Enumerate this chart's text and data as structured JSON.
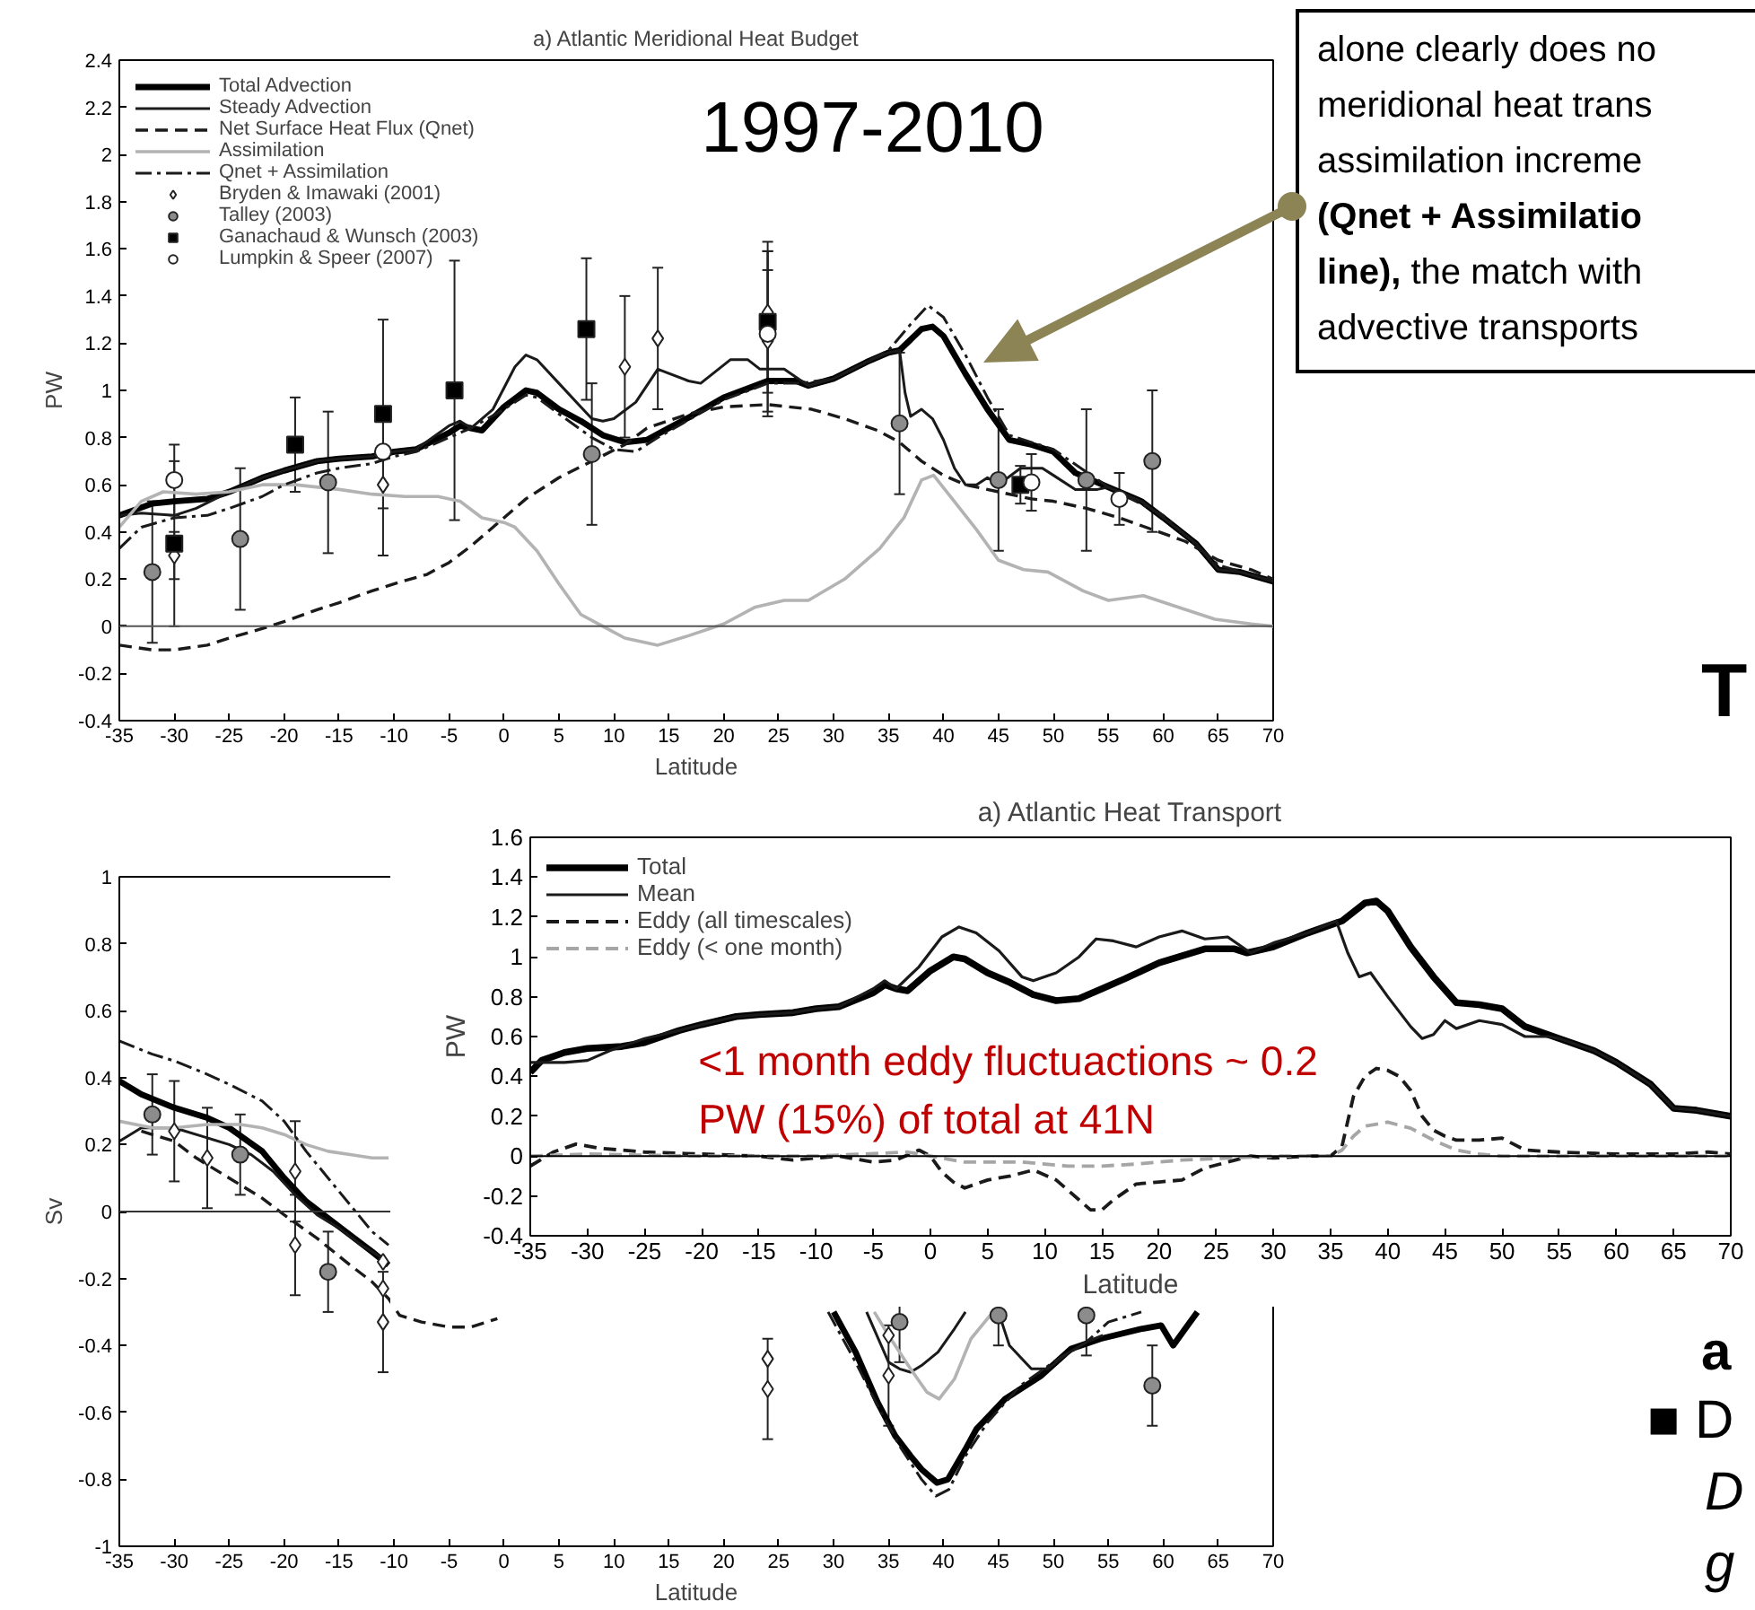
{
  "chart_data": [
    {
      "type": "line",
      "title": "a) Atlantic Meridional Heat Budget",
      "xlabel": "Latitude",
      "ylabel": "PW",
      "xlim": [
        -35,
        70
      ],
      "ylim": [
        -0.4,
        2.4
      ],
      "xticks": [
        -35,
        -30,
        -25,
        -20,
        -15,
        -10,
        -5,
        0,
        5,
        10,
        15,
        20,
        25,
        30,
        35,
        40,
        45,
        50,
        55,
        60,
        65,
        70
      ],
      "yticks": [
        -0.4,
        -0.2,
        0,
        0.2,
        0.4,
        0.6,
        0.8,
        1,
        1.2,
        1.4,
        1.6,
        1.8,
        2,
        2.2,
        2.4
      ],
      "legend": "top left",
      "ref_lines": [
        {
          "axis": "y",
          "value": 0,
          "color": "#555555"
        }
      ],
      "annotations": [
        "1997-2010",
        "alone clearly does no\nmeridional heat trans\nassimilation increme\n(Qnet + Assimilatio\nline), the match with\nadvective transports"
      ],
      "series": [
        {
          "name": "Total Advection",
          "color": "#000000",
          "line_style": "solid",
          "x": [
            -35,
            -32,
            -30,
            -27,
            -25,
            -22,
            -20,
            -17,
            -15,
            -12,
            -10,
            -8,
            -5,
            -4,
            -3,
            -2,
            0,
            2,
            3,
            5,
            7,
            9,
            11,
            13,
            15,
            17,
            20,
            24,
            26.6,
            27.7,
            30,
            33,
            35,
            36,
            38,
            39,
            40,
            42,
            44,
            46,
            48,
            50,
            52,
            55,
            58,
            60,
            63,
            65,
            67,
            70
          ],
          "values": [
            0.47,
            0.52,
            0.53,
            0.54,
            0.57,
            0.63,
            0.66,
            0.7,
            0.71,
            0.72,
            0.74,
            0.75,
            0.82,
            0.85,
            0.84,
            0.83,
            0.93,
            1.0,
            0.99,
            0.92,
            0.87,
            0.81,
            0.78,
            0.79,
            0.84,
            0.89,
            0.97,
            1.04,
            1.04,
            1.02,
            1.05,
            1.12,
            1.16,
            1.17,
            1.26,
            1.27,
            1.23,
            1.07,
            0.92,
            0.79,
            0.77,
            0.74,
            0.65,
            0.59,
            0.53,
            0.46,
            0.35,
            0.24,
            0.23,
            0.19
          ]
        },
        {
          "name": "Steady Advection",
          "color": "#1a1a1a",
          "line_style": "solid",
          "x": [
            -35,
            -33,
            -30,
            -28,
            -25,
            -22,
            -20,
            -17,
            -15,
            -12,
            -10,
            -8,
            -5,
            -4,
            -3,
            -1,
            1,
            2,
            3,
            5,
            7,
            8,
            9,
            10,
            12,
            14,
            16.8,
            17.9,
            20.6,
            22.2,
            23.3,
            25.5,
            27.7,
            30,
            33,
            35,
            36,
            36.5,
            37,
            38,
            39,
            40,
            41,
            42,
            43,
            44,
            45,
            47,
            49,
            50,
            52,
            54,
            55,
            58,
            60,
            63,
            65,
            67,
            70
          ],
          "values": [
            0.47,
            0.48,
            0.47,
            0.5,
            0.57,
            0.63,
            0.66,
            0.7,
            0.71,
            0.72,
            0.74,
            0.75,
            0.85,
            0.87,
            0.84,
            0.92,
            1.1,
            1.15,
            1.13,
            1.03,
            0.93,
            0.88,
            0.87,
            0.88,
            0.95,
            1.09,
            1.04,
            1.03,
            1.13,
            1.13,
            1.09,
            1.09,
            1.02,
            1.05,
            1.12,
            1.16,
            1.17,
            0.99,
            0.89,
            0.92,
            0.88,
            0.79,
            0.67,
            0.6,
            0.6,
            0.63,
            0.6,
            0.67,
            0.67,
            0.64,
            0.58,
            0.58,
            0.59,
            0.53,
            0.46,
            0.35,
            0.24,
            0.23,
            0.19
          ]
        },
        {
          "name": "Net Surface Heat Flux (Qnet)",
          "color": "#1a1a1a",
          "line_style": "dashed",
          "x": [
            -35,
            -32,
            -30,
            -27,
            -25,
            -22,
            -20,
            -17,
            -15,
            -12,
            -10,
            -7,
            -5,
            -3,
            -1,
            0,
            2,
            5,
            8,
            11,
            13,
            16.8,
            20,
            24,
            28,
            31,
            34,
            36,
            38,
            40,
            42,
            45,
            48,
            50,
            53,
            56,
            59,
            62,
            65,
            68,
            70
          ],
          "values": [
            -0.08,
            -0.1,
            -0.1,
            -0.08,
            -0.05,
            -0.01,
            0.02,
            0.07,
            0.1,
            0.15,
            0.18,
            0.22,
            0.27,
            0.34,
            0.42,
            0.46,
            0.54,
            0.63,
            0.7,
            0.77,
            0.84,
            0.9,
            0.93,
            0.94,
            0.92,
            0.88,
            0.83,
            0.78,
            0.7,
            0.64,
            0.6,
            0.57,
            0.54,
            0.53,
            0.5,
            0.46,
            0.41,
            0.36,
            0.28,
            0.24,
            0.2
          ]
        },
        {
          "name": "Assimilation",
          "color": "#b3b3b3",
          "line_style": "solid",
          "x": [
            -35,
            -33,
            -31,
            -28,
            -25,
            -22,
            -19,
            -15,
            -12,
            -9,
            -6,
            -4,
            -2,
            0,
            1,
            3,
            5,
            7,
            9,
            11,
            14,
            16.8,
            20,
            22.8,
            25.5,
            27.7,
            31,
            34.2,
            36.4,
            38,
            39.1,
            40.8,
            43,
            45,
            47.3,
            49.5,
            52.7,
            55,
            58.2,
            61.4,
            64.7,
            68,
            70
          ],
          "values": [
            0.42,
            0.53,
            0.57,
            0.56,
            0.57,
            0.6,
            0.6,
            0.58,
            0.56,
            0.55,
            0.55,
            0.53,
            0.46,
            0.44,
            0.42,
            0.32,
            0.18,
            0.05,
            0.0,
            -0.05,
            -0.08,
            -0.04,
            0.01,
            0.08,
            0.11,
            0.11,
            0.2,
            0.33,
            0.46,
            0.62,
            0.64,
            0.54,
            0.41,
            0.28,
            0.24,
            0.23,
            0.15,
            0.11,
            0.13,
            0.08,
            0.03,
            0.01,
            0.0
          ]
        },
        {
          "name": "Qnet + Assimilation",
          "color": "#1a1a1a",
          "line_style": "dashdot",
          "x": [
            -35,
            -33,
            -30,
            -27,
            -25,
            -22,
            -20,
            -17,
            -15,
            -12,
            -10,
            -8,
            -5,
            -3,
            0,
            2,
            3,
            5,
            8,
            10,
            12,
            14,
            17,
            20,
            24,
            27,
            30,
            33,
            35,
            37,
            38.6,
            40,
            42,
            44,
            46,
            48,
            50,
            55,
            60,
            65,
            70
          ],
          "values": [
            0.33,
            0.42,
            0.46,
            0.47,
            0.5,
            0.55,
            0.6,
            0.65,
            0.67,
            0.69,
            0.72,
            0.74,
            0.8,
            0.84,
            0.92,
            0.98,
            0.97,
            0.9,
            0.8,
            0.75,
            0.74,
            0.8,
            0.88,
            0.96,
            1.03,
            1.03,
            1.05,
            1.12,
            1.17,
            1.28,
            1.36,
            1.31,
            1.15,
            0.97,
            0.81,
            0.78,
            0.75,
            0.59,
            0.47,
            0.26,
            0.19
          ]
        },
        {
          "type": "scatter",
          "name": "Bryden & Imawaki (2001)",
          "color": "#ffffff",
          "marker": "diamond",
          "x": [
            -30,
            -11,
            11,
            14,
            24,
            24
          ],
          "values": [
            0.3,
            0.6,
            1.1,
            1.22,
            1.33,
            1.21
          ],
          "errors": [
            0.1,
            0.3,
            0.3,
            0.3,
            0.3,
            0.3
          ]
        },
        {
          "type": "scatter",
          "name": "Talley (2003)",
          "color": "#8c8c8c",
          "marker": "circle",
          "x": [
            -32,
            -24,
            -16,
            8,
            36,
            45,
            53,
            59
          ],
          "values": [
            0.23,
            0.37,
            0.61,
            0.73,
            0.86,
            0.62,
            0.62,
            0.7
          ],
          "errors": [
            0.3,
            0.3,
            0.3,
            0.3,
            0.3,
            0.3,
            0.3,
            0.3
          ]
        },
        {
          "type": "scatter",
          "name": "Ganachaud & Wunsch (2003)",
          "color": "#000000",
          "marker": "square",
          "x": [
            -30,
            -19,
            -11,
            -4.5,
            7.5,
            24,
            47
          ],
          "values": [
            0.35,
            0.77,
            0.9,
            1.0,
            1.26,
            1.29,
            0.6
          ],
          "errors": [
            0.35,
            0.2,
            0.4,
            0.55,
            0.3,
            0.3,
            0.08
          ]
        },
        {
          "type": "scatter",
          "name": "Lumpkin & Speer (2007)",
          "color": "#ffffff",
          "marker": "circle",
          "x": [
            -30,
            -11,
            24,
            48,
            56
          ],
          "values": [
            0.62,
            0.74,
            1.24,
            0.61,
            0.54
          ],
          "errors": [
            0.15,
            null,
            0.35,
            0.12,
            0.11
          ]
        }
      ]
    },
    {
      "type": "line",
      "xlabel": "Latitude",
      "ylabel": "Sv",
      "xlim": [
        -35,
        70
      ],
      "ylim": [
        -1,
        1
      ],
      "xticks": [
        -35,
        -30,
        -25,
        -20,
        -15,
        -10,
        -5,
        0,
        5,
        10,
        15,
        20,
        25,
        30,
        35,
        40,
        45,
        50,
        55,
        60,
        65,
        70
      ],
      "yticks": [
        -1,
        -0.8,
        -0.6,
        -0.4,
        -0.2,
        0,
        0.2,
        0.4,
        0.6,
        0.8,
        1
      ],
      "ref_lines": [
        {
          "axis": "y",
          "value": 0,
          "color": "#333333"
        }
      ],
      "series": [
        {
          "color": "#000000",
          "line_style": "solid",
          "x": [
            -35,
            -33,
            -30,
            -27,
            -25,
            -22,
            -20,
            -18,
            -16,
            -14,
            -12,
            -10.5,
            0,
            30,
            32,
            34,
            35.6,
            37,
            38,
            39.4,
            40.4,
            42,
            43,
            45.6,
            48.9,
            51.6,
            54.3,
            58.1,
            59.8,
            60.9,
            62,
            63.1
          ],
          "values": [
            0.39,
            0.35,
            0.31,
            0.28,
            0.25,
            0.18,
            0.1,
            0.03,
            -0.02,
            -0.07,
            -0.12,
            -0.16,
            null,
            -0.3,
            -0.42,
            -0.57,
            -0.67,
            -0.73,
            -0.77,
            -0.81,
            -0.8,
            -0.71,
            -0.65,
            -0.56,
            -0.49,
            -0.41,
            -0.38,
            -0.35,
            -0.34,
            -0.4,
            -0.35,
            -0.3
          ]
        },
        {
          "color": "#1a1a1a",
          "line_style": "solid",
          "x": [
            -35,
            -33,
            -30,
            -27,
            -25,
            -23,
            -21,
            -19,
            -17,
            -15,
            -13,
            -11,
            0,
            33,
            35,
            36,
            37,
            38,
            39.5,
            41,
            42,
            43.5,
            45,
            46,
            48,
            49.5,
            51,
            53,
            54.5
          ],
          "values": [
            0.21,
            0.25,
            0.25,
            0.22,
            0.2,
            0.17,
            0.12,
            0.05,
            -0.01,
            -0.05,
            -0.1,
            -0.14,
            null,
            -0.3,
            -0.45,
            -0.47,
            -0.48,
            -0.46,
            -0.42,
            -0.35,
            -0.3,
            null,
            -0.3,
            -0.4,
            -0.47,
            -0.47,
            -0.43,
            -0.39,
            -0.37
          ]
        },
        {
          "color": "#1a1a1a",
          "line_style": "dashed",
          "x": [
            -33,
            -30,
            -28,
            -25,
            -22,
            -20,
            -17,
            -14,
            -12,
            -10.5,
            -9.5,
            -7.5,
            -5,
            -3,
            -0.6
          ],
          "values": [
            0.24,
            0.21,
            0.16,
            0.1,
            0.04,
            -0.01,
            -0.08,
            -0.16,
            -0.21,
            -0.26,
            -0.31,
            -0.33,
            -0.345,
            -0.345,
            -0.32
          ]
        },
        {
          "color": "#b3b3b3",
          "line_style": "solid",
          "x": [
            -35,
            -32,
            -30,
            -27,
            -24,
            -22,
            -20,
            -18,
            -16,
            -14,
            -12,
            -10.5,
            0,
            33.7,
            35,
            37,
            38.5,
            39.6,
            41,
            42.5,
            44.5
          ],
          "values": [
            0.27,
            0.25,
            0.25,
            0.26,
            0.26,
            0.25,
            0.23,
            0.2,
            0.18,
            0.17,
            0.16,
            0.16,
            null,
            -0.3,
            -0.37,
            -0.47,
            -0.54,
            -0.56,
            -0.5,
            -0.38,
            -0.3
          ]
        },
        {
          "color": "#1a1a1a",
          "line_style": "dashdot",
          "x": [
            -35,
            -32,
            -30,
            -27,
            -25,
            -22,
            -20,
            -18,
            -16,
            -14,
            -12,
            -10.5,
            0,
            29.5,
            32,
            34,
            36,
            38,
            39.3,
            40.5,
            42,
            44,
            47,
            50,
            53,
            55,
            57,
            58
          ],
          "values": [
            0.51,
            0.47,
            0.45,
            0.41,
            0.38,
            0.33,
            0.27,
            0.18,
            0.1,
            0.02,
            -0.06,
            -0.1,
            null,
            -0.3,
            -0.45,
            -0.58,
            -0.7,
            -0.8,
            -0.85,
            -0.83,
            -0.73,
            -0.63,
            -0.52,
            -0.45,
            -0.39,
            -0.33,
            -0.31,
            -0.3
          ]
        },
        {
          "type": "scatter",
          "color": "#ffffff",
          "marker": "diamond",
          "x": [
            -30,
            -27,
            -19,
            -19,
            -11,
            -11,
            -11,
            24,
            24,
            35,
            35
          ],
          "values": [
            0.24,
            0.16,
            0.12,
            -0.1,
            -0.15,
            -0.23,
            -0.33,
            -0.44,
            -0.53,
            -0.37,
            -0.49
          ],
          "errors": [
            0.15,
            0.15,
            0.15,
            0.15,
            null,
            null,
            0.15,
            null,
            0.15,
            null,
            0.15
          ]
        },
        {
          "type": "scatter",
          "color": "#8c8c8c",
          "marker": "circle",
          "x": [
            -32,
            -24,
            -16,
            36,
            45,
            53,
            59
          ],
          "values": [
            0.29,
            0.17,
            -0.18,
            -0.33,
            -0.31,
            -0.31,
            -0.52
          ],
          "errors": [
            0.12,
            0.12,
            0.12,
            0.12,
            0.09,
            0.12,
            0.12
          ]
        }
      ]
    },
    {
      "type": "line",
      "title": "a) Atlantic Heat Transport",
      "xlabel": "Latitude",
      "ylabel": "PW",
      "xlim": [
        -35,
        70
      ],
      "ylim": [
        -0.4,
        1.6
      ],
      "xticks": [
        -35,
        -30,
        -25,
        -20,
        -15,
        -10,
        -5,
        0,
        5,
        10,
        15,
        20,
        25,
        30,
        35,
        40,
        45,
        50,
        55,
        60,
        65,
        70
      ],
      "yticks": [
        -0.4,
        -0.2,
        0,
        0.2,
        0.4,
        0.6,
        0.8,
        1,
        1.2,
        1.4,
        1.6
      ],
      "legend": "top left",
      "ref_lines": [
        {
          "axis": "y",
          "value": 0,
          "color": "#000000"
        }
      ],
      "annotations": [
        "<1 month eddy fluctuactions ~ 0.2\nPW (15%) of total at 41N"
      ],
      "series": [
        {
          "name": "Total",
          "color": "#000000",
          "line_style": "solid",
          "x": [
            -35,
            -34,
            -32,
            -30,
            -27,
            -25,
            -22,
            -20,
            -17,
            -15,
            -12,
            -10,
            -8,
            -5,
            -4,
            -3,
            -2,
            0,
            2,
            3,
            5,
            7,
            9,
            11,
            13,
            15,
            17,
            20,
            24,
            26.6,
            27.7,
            30,
            33,
            35,
            36,
            38,
            39,
            40,
            42,
            44,
            46,
            48,
            50,
            52,
            55,
            58,
            60,
            63,
            65,
            67,
            70
          ],
          "values": [
            0.42,
            0.48,
            0.52,
            0.54,
            0.55,
            0.57,
            0.63,
            0.66,
            0.7,
            0.71,
            0.72,
            0.74,
            0.75,
            0.82,
            0.86,
            0.84,
            0.83,
            0.93,
            1.0,
            0.99,
            0.92,
            0.87,
            0.81,
            0.78,
            0.79,
            0.84,
            0.89,
            0.97,
            1.04,
            1.04,
            1.02,
            1.05,
            1.12,
            1.16,
            1.18,
            1.27,
            1.28,
            1.23,
            1.05,
            0.9,
            0.77,
            0.76,
            0.74,
            0.65,
            0.59,
            0.53,
            0.47,
            0.36,
            0.24,
            0.23,
            0.2
          ]
        },
        {
          "name": "Mean",
          "color": "#1a1a1a",
          "line_style": "solid",
          "x": [
            -35,
            -32,
            -30,
            -28,
            -25,
            -22,
            -20,
            -17,
            -15,
            -12,
            -10,
            -8,
            -5,
            -4,
            -3,
            -1,
            1,
            2.5,
            4,
            6,
            8,
            9,
            11,
            13,
            14.5,
            16,
            18,
            20,
            22,
            24,
            26,
            28,
            30,
            33,
            35.5,
            36.5,
            37.5,
            38.5,
            40,
            42,
            43,
            44,
            45,
            46,
            48,
            50,
            52,
            54,
            55,
            58,
            60,
            63,
            65,
            67,
            70
          ],
          "values": [
            0.47,
            0.47,
            0.48,
            0.53,
            0.59,
            0.63,
            0.66,
            0.7,
            0.71,
            0.72,
            0.74,
            0.75,
            0.84,
            0.88,
            0.84,
            0.95,
            1.1,
            1.15,
            1.12,
            1.03,
            0.9,
            0.88,
            0.92,
            1.0,
            1.09,
            1.08,
            1.05,
            1.1,
            1.13,
            1.09,
            1.1,
            1.02,
            1.07,
            1.12,
            1.18,
            1.02,
            0.9,
            0.92,
            0.8,
            0.65,
            0.59,
            0.61,
            0.68,
            0.64,
            0.68,
            0.66,
            0.6,
            0.6,
            0.59,
            0.53,
            0.47,
            0.36,
            0.24,
            0.23,
            0.2
          ]
        },
        {
          "name": "Eddy (all timescales)",
          "color": "#1a1a1a",
          "line_style": "dashed",
          "x": [
            -35,
            -33,
            -31,
            -29,
            -25,
            -20,
            -15,
            -12,
            -8,
            -5,
            -3,
            -1,
            0,
            1,
            2,
            3,
            5,
            7,
            9,
            11,
            13,
            14,
            15,
            16,
            18,
            20,
            22,
            24,
            26,
            28,
            30,
            33,
            35,
            36,
            37,
            38,
            39,
            40,
            41,
            42,
            43,
            44,
            45,
            46,
            48,
            50,
            51,
            52,
            55,
            60,
            65,
            68,
            70
          ],
          "values": [
            -0.05,
            0.02,
            0.06,
            0.04,
            0.02,
            0.01,
            0.0,
            -0.02,
            0.0,
            -0.03,
            -0.02,
            0.03,
            0.0,
            -0.08,
            -0.13,
            -0.16,
            -0.12,
            -0.1,
            -0.07,
            -0.12,
            -0.22,
            -0.27,
            -0.27,
            -0.22,
            -0.14,
            -0.13,
            -0.12,
            -0.06,
            -0.03,
            0.0,
            -0.01,
            0.0,
            0.0,
            0.05,
            0.3,
            0.4,
            0.44,
            0.43,
            0.4,
            0.33,
            0.2,
            0.13,
            0.1,
            0.08,
            0.08,
            0.09,
            0.06,
            0.03,
            0.02,
            0.01,
            0.01,
            0.02,
            0.01
          ]
        },
        {
          "name": "Eddy (< one month)",
          "color": "#a6a6a6",
          "line_style": "dashed",
          "x": [
            -35,
            -30,
            -20,
            -10,
            -2,
            0,
            3,
            8,
            12,
            15,
            18,
            22,
            26,
            30,
            35,
            36,
            37,
            38,
            40,
            42,
            44,
            46,
            48,
            50,
            55,
            70
          ],
          "values": [
            0.0,
            0.01,
            0.0,
            0.0,
            0.02,
            0.0,
            -0.03,
            -0.03,
            -0.05,
            -0.05,
            -0.04,
            -0.02,
            -0.01,
            0.0,
            0.0,
            0.03,
            0.1,
            0.15,
            0.17,
            0.14,
            0.08,
            0.03,
            0.01,
            0.0,
            0.0,
            0.0
          ]
        }
      ]
    },
    {
      "type": "other",
      "annotations": [
        "T",
        "a",
        "■ D",
        "D",
        "g"
      ]
    }
  ]
}
